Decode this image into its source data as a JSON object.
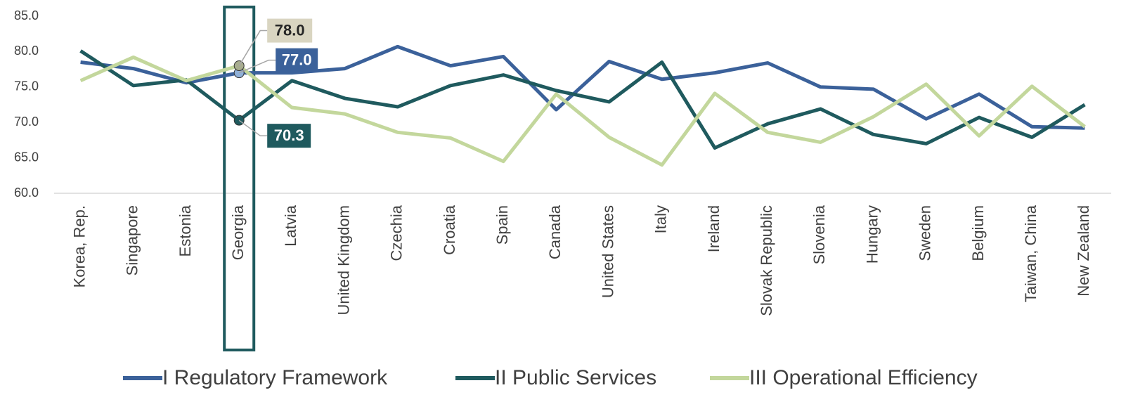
{
  "chart_data": {
    "type": "line",
    "categories": [
      "Korea, Rep.",
      "Singapore",
      "Estonia",
      "Georgia",
      "Latvia",
      "United Kingdom",
      "Czechia",
      "Croatia",
      "Spain",
      "Canada",
      "United States",
      "Italy",
      "Ireland",
      "Slovak Republic",
      "Slovenia",
      "Hungary",
      "Sweden",
      "Belgium",
      "Taiwan, China",
      "New Zealand"
    ],
    "series": [
      {
        "name": "I Regulatory Framework",
        "color": "#3b619a",
        "values": [
          78.5,
          77.6,
          75.6,
          77.0,
          77.0,
          77.6,
          80.7,
          78.0,
          79.3,
          71.8,
          78.6,
          76.1,
          77.0,
          78.4,
          75.0,
          74.7,
          70.5,
          74.0,
          69.4,
          69.2
        ],
        "value_labels": [
          null,
          null,
          null,
          "77.0",
          null,
          null,
          null,
          null,
          null,
          null,
          null,
          null,
          null,
          null,
          null,
          null,
          null,
          null,
          null,
          null
        ]
      },
      {
        "name": "II Public Services",
        "color": "#1f5a5e",
        "values": [
          80.1,
          75.2,
          76.0,
          70.3,
          75.9,
          73.4,
          72.2,
          75.2,
          76.7,
          74.5,
          72.9,
          78.5,
          66.4,
          69.8,
          71.9,
          68.3,
          67.0,
          70.7,
          67.9,
          72.5
        ],
        "value_labels": [
          null,
          null,
          null,
          "70.3",
          null,
          null,
          null,
          null,
          null,
          null,
          null,
          null,
          null,
          null,
          null,
          null,
          null,
          null,
          null,
          null
        ]
      },
      {
        "name": "III Operational Efficiency",
        "color": "#c3d79c",
        "values": [
          75.9,
          79.2,
          75.9,
          78.0,
          72.1,
          71.2,
          68.6,
          67.8,
          64.5,
          74.0,
          67.9,
          64.0,
          74.1,
          68.6,
          67.2,
          70.8,
          75.4,
          68.1,
          75.1,
          69.4
        ],
        "value_labels": [
          null,
          null,
          null,
          "78.0",
          null,
          null,
          null,
          null,
          null,
          null,
          null,
          null,
          null,
          null,
          null,
          null,
          null,
          null,
          null,
          null
        ]
      }
    ],
    "ylim": [
      60,
      85
    ],
    "yticks": [
      {
        "value": 60,
        "label": "60.0"
      },
      {
        "value": 65,
        "label": "65.0"
      },
      {
        "value": 70,
        "label": "70.0"
      },
      {
        "value": 75,
        "label": "75.0"
      },
      {
        "value": 80,
        "label": "80.0"
      },
      {
        "value": 85,
        "label": "85.0"
      }
    ],
    "grid": false,
    "highlight_index": 3,
    "legend": "bottom"
  }
}
